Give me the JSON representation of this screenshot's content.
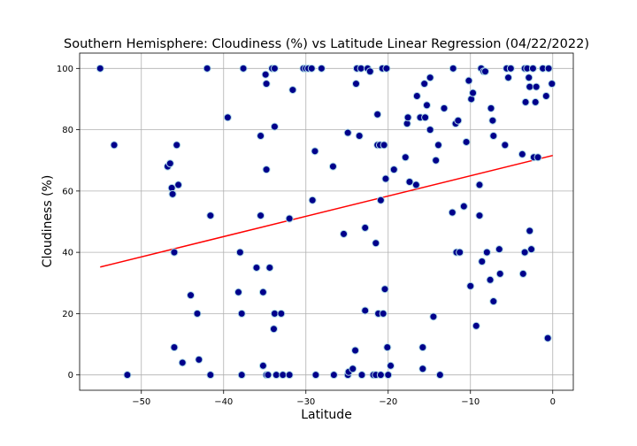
{
  "chart_data": {
    "type": "scatter",
    "title": "Southern Hemisphere: Cloudiness (%) vs Latitude Linear Regression (04/22/2022)",
    "xlabel": "Latitude",
    "ylabel": "Cloudiness (%)",
    "xlim": [
      -57.5,
      2.5
    ],
    "ylim": [
      -5,
      105
    ],
    "xticks": [
      -50,
      -40,
      -30,
      -20,
      -10,
      0
    ],
    "yticks": [
      0,
      20,
      40,
      60,
      80,
      100
    ],
    "grid": true,
    "marker_color": "#00008b",
    "marker_edge_color": "#add8e6",
    "regression_color": "#ff0000",
    "regression": {
      "x": [
        -55,
        0
      ],
      "y": [
        35.2,
        71.6
      ]
    },
    "points": [
      [
        -55,
        100
      ],
      [
        -53.3,
        75
      ],
      [
        -51.7,
        0
      ],
      [
        -46.8,
        68
      ],
      [
        -46.5,
        69
      ],
      [
        -46.3,
        61
      ],
      [
        -46.2,
        59
      ],
      [
        -46,
        40
      ],
      [
        -45.7,
        75
      ],
      [
        -45.5,
        62
      ],
      [
        -46,
        9
      ],
      [
        -45,
        4
      ],
      [
        -44,
        26
      ],
      [
        -43.2,
        20
      ],
      [
        -43,
        5
      ],
      [
        -42,
        100
      ],
      [
        -41.6,
        52
      ],
      [
        -41.6,
        0
      ],
      [
        -39.5,
        84
      ],
      [
        -38.2,
        27
      ],
      [
        -38,
        40
      ],
      [
        -37.8,
        20
      ],
      [
        -37.8,
        0
      ],
      [
        -37.6,
        100
      ],
      [
        -36,
        35
      ],
      [
        -35.5,
        78
      ],
      [
        -35.5,
        52
      ],
      [
        -35.2,
        27
      ],
      [
        -35.2,
        3
      ],
      [
        -34.9,
        98
      ],
      [
        -34.8,
        67
      ],
      [
        -34.8,
        95
      ],
      [
        -34.8,
        0
      ],
      [
        -34.6,
        0
      ],
      [
        -34.4,
        35
      ],
      [
        -34.1,
        100
      ],
      [
        -33.8,
        100
      ],
      [
        -33.8,
        81
      ],
      [
        -33.8,
        20
      ],
      [
        -33.9,
        15
      ],
      [
        -33.6,
        0
      ],
      [
        -33,
        20
      ],
      [
        -32.8,
        0
      ],
      [
        -32.0,
        51
      ],
      [
        -32,
        0
      ],
      [
        -31.6,
        93
      ],
      [
        -30.3,
        100
      ],
      [
        -30,
        100
      ],
      [
        -29.7,
        100
      ],
      [
        -29.3,
        100
      ],
      [
        -29.2,
        57
      ],
      [
        -28.9,
        73
      ],
      [
        -28.8,
        0
      ],
      [
        -28.1,
        100
      ],
      [
        -26.7,
        68
      ],
      [
        -26.6,
        0
      ],
      [
        -25.4,
        46
      ],
      [
        -24.9,
        79
      ],
      [
        -24.9,
        0
      ],
      [
        -24.8,
        1
      ],
      [
        -24.3,
        2
      ],
      [
        -24,
        8
      ],
      [
        -23.9,
        95
      ],
      [
        -23.8,
        100
      ],
      [
        -23.5,
        78
      ],
      [
        -23.3,
        100
      ],
      [
        -23.2,
        0
      ],
      [
        -22.8,
        21
      ],
      [
        -22.8,
        48
      ],
      [
        -22.5,
        100
      ],
      [
        -22.2,
        99
      ],
      [
        -21.8,
        0
      ],
      [
        -21.5,
        43
      ],
      [
        -21.5,
        0
      ],
      [
        -21.3,
        75
      ],
      [
        -21.3,
        85
      ],
      [
        -21.2,
        20
      ],
      [
        -21,
        75
      ],
      [
        -20.9,
        57
      ],
      [
        -20.9,
        0
      ],
      [
        -20.7,
        100
      ],
      [
        -20.6,
        20
      ],
      [
        -20.5,
        75
      ],
      [
        -20.4,
        28
      ],
      [
        -20.3,
        64
      ],
      [
        -20.2,
        100
      ],
      [
        -20.1,
        9
      ],
      [
        -20,
        0
      ],
      [
        -19.7,
        3
      ],
      [
        -19.3,
        67
      ],
      [
        -17.9,
        71
      ],
      [
        -17.7,
        82
      ],
      [
        -17.6,
        84
      ],
      [
        -17.4,
        63
      ],
      [
        -16.6,
        62
      ],
      [
        -16.5,
        91
      ],
      [
        -16.1,
        84
      ],
      [
        -15.8,
        9
      ],
      [
        -15.8,
        2
      ],
      [
        -15.6,
        95
      ],
      [
        -15.5,
        84
      ],
      [
        -15.3,
        88
      ],
      [
        -14.9,
        97
      ],
      [
        -14.9,
        80
      ],
      [
        -14.5,
        19
      ],
      [
        -14.2,
        70
      ],
      [
        -13.9,
        75
      ],
      [
        -13.7,
        0
      ],
      [
        -13.2,
        87
      ],
      [
        -12.2,
        53
      ],
      [
        -12.1,
        100
      ],
      [
        -11.8,
        82
      ],
      [
        -11.7,
        40
      ],
      [
        -11.5,
        83
      ],
      [
        -11.3,
        40
      ],
      [
        -10.8,
        55
      ],
      [
        -10.5,
        76
      ],
      [
        -10.2,
        96
      ],
      [
        -10,
        29
      ],
      [
        -9.9,
        90
      ],
      [
        -9.7,
        92
      ],
      [
        -9.3,
        16
      ],
      [
        -8.9,
        52
      ],
      [
        -8.9,
        62
      ],
      [
        -8.7,
        100
      ],
      [
        -8.6,
        37
      ],
      [
        -8.4,
        99
      ],
      [
        -8.2,
        99
      ],
      [
        -8,
        40
      ],
      [
        -7.6,
        31
      ],
      [
        -7.5,
        87
      ],
      [
        -7.3,
        83
      ],
      [
        -7.2,
        78
      ],
      [
        -7.2,
        24
      ],
      [
        -6.5,
        41
      ],
      [
        -6.4,
        33
      ],
      [
        -5.8,
        75
      ],
      [
        -5.6,
        100
      ],
      [
        -5.4,
        97
      ],
      [
        -5.1,
        100
      ],
      [
        -3.7,
        72
      ],
      [
        -3.6,
        33
      ],
      [
        -3.4,
        40
      ],
      [
        -3.4,
        100
      ],
      [
        -3.3,
        89
      ],
      [
        -3.1,
        100
      ],
      [
        -2.9,
        97
      ],
      [
        -2.8,
        94
      ],
      [
        -2.8,
        47
      ],
      [
        -2.6,
        41
      ],
      [
        -2.4,
        100
      ],
      [
        -2.3,
        71
      ],
      [
        -2.1,
        89
      ],
      [
        -2,
        94
      ],
      [
        -1.8,
        71
      ],
      [
        -1.2,
        100
      ],
      [
        -0.8,
        91
      ],
      [
        -0.6,
        12
      ],
      [
        -0.5,
        100
      ],
      [
        -0.1,
        95
      ]
    ]
  }
}
